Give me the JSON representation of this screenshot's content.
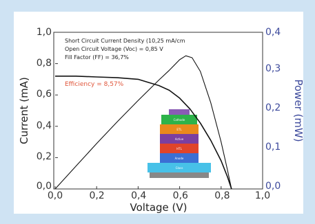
{
  "chart_data": {
    "type": "line",
    "xlabel": "Voltage (V)",
    "ylabel": "Current (mA)",
    "y2label": "Power (mW)",
    "xlim": [
      0,
      1.0
    ],
    "ylim": [
      0,
      1.0
    ],
    "y2lim": [
      0,
      0.4
    ],
    "x_ticks": [
      "0,0",
      "0,2",
      "0,4",
      "0,6",
      "0,8",
      "1,0"
    ],
    "y_ticks": [
      "0,0",
      "0,2",
      "0,4",
      "0,6",
      "0,8",
      "1,0"
    ],
    "y2_ticks": [
      "0,0",
      "0,1",
      "0,2",
      "0,3",
      "0,4"
    ],
    "grid": false,
    "annotations": [
      "Short Circuit Current Density (10,25 mA/cm",
      "Open Circuit Voltage (Voc) = 0,85 V",
      "Fill Factor (FF) = 36,7%"
    ],
    "efficiency_label": "Efficiency = 8,57%",
    "series": [
      {
        "axis": "left",
        "color": "#111111",
        "x": [
          0.0,
          0.1,
          0.2,
          0.3,
          0.4,
          0.45,
          0.5,
          0.55,
          0.6,
          0.65,
          0.7,
          0.75,
          0.8,
          0.83,
          0.85
        ],
        "y": [
          0.72,
          0.72,
          0.715,
          0.71,
          0.7,
          0.68,
          0.66,
          0.63,
          0.58,
          0.51,
          0.42,
          0.31,
          0.18,
          0.08,
          0.0
        ]
      },
      {
        "axis": "right",
        "color": "#111111",
        "x": [
          0.0,
          0.1,
          0.2,
          0.3,
          0.4,
          0.5,
          0.55,
          0.6,
          0.63,
          0.66,
          0.7,
          0.75,
          0.8,
          0.83,
          0.85
        ],
        "y": [
          0.0,
          0.058,
          0.116,
          0.172,
          0.226,
          0.278,
          0.303,
          0.33,
          0.34,
          0.335,
          0.3,
          0.22,
          0.12,
          0.05,
          0.0
        ]
      }
    ]
  },
  "device_stack": {
    "layers": [
      {
        "label": "",
        "color": "#8a5bb5"
      },
      {
        "label": "Cathode",
        "color": "#2db34a"
      },
      {
        "label": "ETL",
        "color": "#e9891c"
      },
      {
        "label": "Active",
        "color": "#7b3fa0"
      },
      {
        "label": "HTL",
        "color": "#e0442a"
      },
      {
        "label": "Anode",
        "color": "#3b6fd4"
      },
      {
        "label": "Glass",
        "color": "#47c1e8"
      },
      {
        "label": "",
        "color": "#888888"
      }
    ]
  }
}
